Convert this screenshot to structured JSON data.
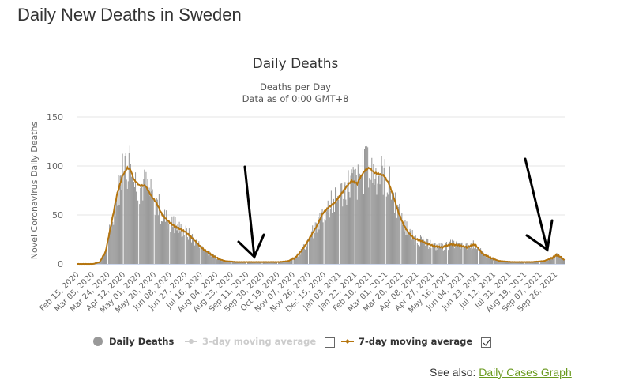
{
  "page": {
    "title": "Daily New Deaths in Sweden",
    "see_also_label": "See also:",
    "see_also_link": "Daily Cases Graph"
  },
  "colors": {
    "bars": "#999999",
    "ma7": "#b5750f",
    "ma3_disabled": "#cccccc",
    "grid": "#e6e6e6",
    "link": "#6a9a1f",
    "annotation_arrow": "#000000"
  },
  "chart_data": {
    "type": "bar",
    "title": "Daily Deaths",
    "subtitle_line1": "Deaths per Day",
    "subtitle_line2": "Data as of 0:00 GMT+8",
    "xlabel": "",
    "ylabel": "Novel Coronavirus Daily Deaths",
    "ylim": [
      0,
      150
    ],
    "yticks": [
      0,
      50,
      100,
      150
    ],
    "grid": true,
    "start_date": "2020-02-15",
    "days": 601,
    "x_tick_labels": [
      "Feb 15, 2020",
      "Mar 05, 2020",
      "Mar 24, 2020",
      "Apr 12, 2020",
      "May 01, 2020",
      "May 20, 2020",
      "Jun 08, 2020",
      "Jun 27, 2020",
      "Jul 16, 2020",
      "Aug 04, 2020",
      "Aug 23, 2020",
      "Sep 11, 2020",
      "Sep 30, 2020",
      "Oct 19, 2020",
      "Nov 07, 2020",
      "Nov 26, 2020",
      "Dec 15, 2020",
      "Jan 03, 2021",
      "Jan 22, 2021",
      "Feb 10, 2021",
      "Mar 01, 2021",
      "Mar 20, 2021",
      "Apr 08, 2021",
      "Apr 27, 2021",
      "May 16, 2021",
      "Jun 04, 2021",
      "Jun 23, 2021",
      "Jul 12, 2021",
      "Jul 31, 2021",
      "Aug 19, 2021",
      "Sep 07, 2021",
      "Sep 26, 2021"
    ],
    "ma7_keypoints_day_value": [
      [
        0,
        0
      ],
      [
        20,
        0
      ],
      [
        28,
        2
      ],
      [
        35,
        12
      ],
      [
        42,
        40
      ],
      [
        49,
        70
      ],
      [
        56,
        90
      ],
      [
        62,
        98
      ],
      [
        66,
        96
      ],
      [
        70,
        86
      ],
      [
        77,
        80
      ],
      [
        84,
        80
      ],
      [
        91,
        70
      ],
      [
        98,
        62
      ],
      [
        105,
        50
      ],
      [
        112,
        44
      ],
      [
        119,
        39
      ],
      [
        126,
        36
      ],
      [
        133,
        33
      ],
      [
        140,
        28
      ],
      [
        147,
        22
      ],
      [
        154,
        16
      ],
      [
        161,
        12
      ],
      [
        168,
        8
      ],
      [
        175,
        5
      ],
      [
        182,
        3
      ],
      [
        196,
        2
      ],
      [
        230,
        2
      ],
      [
        250,
        2
      ],
      [
        260,
        3
      ],
      [
        268,
        6
      ],
      [
        275,
        12
      ],
      [
        282,
        20
      ],
      [
        289,
        30
      ],
      [
        296,
        40
      ],
      [
        303,
        52
      ],
      [
        310,
        58
      ],
      [
        317,
        62
      ],
      [
        324,
        70
      ],
      [
        331,
        78
      ],
      [
        338,
        85
      ],
      [
        345,
        82
      ],
      [
        350,
        90
      ],
      [
        355,
        96
      ],
      [
        360,
        98
      ],
      [
        366,
        93
      ],
      [
        372,
        92
      ],
      [
        378,
        90
      ],
      [
        384,
        82
      ],
      [
        390,
        68
      ],
      [
        396,
        52
      ],
      [
        402,
        40
      ],
      [
        408,
        32
      ],
      [
        415,
        26
      ],
      [
        422,
        24
      ],
      [
        430,
        21
      ],
      [
        440,
        18
      ],
      [
        450,
        17
      ],
      [
        460,
        20
      ],
      [
        470,
        19
      ],
      [
        480,
        17
      ],
      [
        490,
        20
      ],
      [
        495,
        15
      ],
      [
        500,
        10
      ],
      [
        510,
        6
      ],
      [
        520,
        3
      ],
      [
        535,
        2
      ],
      [
        560,
        2
      ],
      [
        575,
        3
      ],
      [
        585,
        6
      ],
      [
        590,
        9
      ],
      [
        594,
        8
      ],
      [
        600,
        4
      ]
    ],
    "legend": {
      "placement": "bottom",
      "items": [
        {
          "label": "Daily Deaths",
          "enabled": true,
          "checkbox": false
        },
        {
          "label": "3-day moving average",
          "enabled": false,
          "checkbox": true,
          "checked": false
        },
        {
          "label": "7-day moving average",
          "enabled": true,
          "checkbox": true,
          "checked": true
        }
      ]
    },
    "annotations": [
      "hand-drawn arrow pointing to Sep 2020 low",
      "hand-drawn arrow pointing to Sep 2021 bump"
    ]
  }
}
